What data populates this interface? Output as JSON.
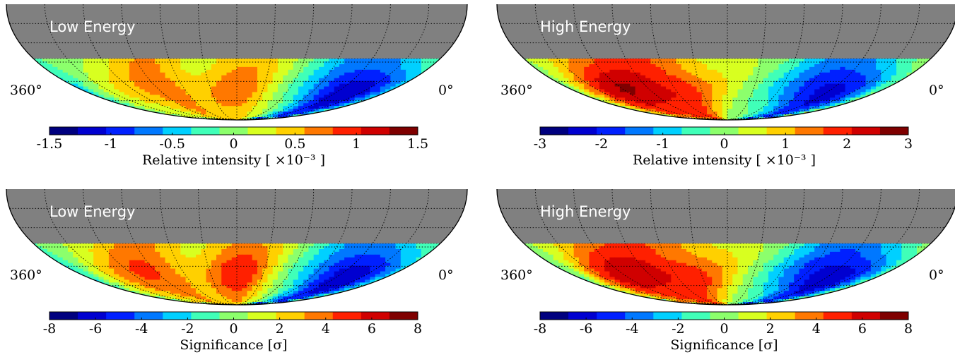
{
  "chart_data": [
    {
      "type": "heatmap",
      "title": "Low Energy",
      "left_label": "360°",
      "right_label": "0°",
      "colorbar_label": "Relative intensity [ ×10⁻³ ]",
      "colorbar_range": [
        -1.5,
        1.5
      ],
      "colorbar_ticks": [
        "-1.5",
        "-1",
        "-0.5",
        "0",
        "0.5",
        "1",
        "1.5"
      ],
      "colorbar_tick_values": [
        -1.5,
        -1,
        -0.5,
        0,
        0.5,
        1,
        1.5
      ],
      "colorbar_colors": [
        "#00007f",
        "#0000d0",
        "#0020ff",
        "#0078ff",
        "#00d0ff",
        "#40ffb8",
        "#8cff6c",
        "#d8ff20",
        "#ffd000",
        "#ff7800",
        "#ff2000",
        "#d00000",
        "#7f0000"
      ],
      "features": [
        {
          "ra_deg": 50,
          "value": -1.4,
          "spread_deg": 40
        },
        {
          "ra_deg": 175,
          "value": 0.6,
          "spread_deg": 30
        },
        {
          "ra_deg": 260,
          "value": 0.6,
          "spread_deg": 25
        },
        {
          "ra_deg": 330,
          "value": 0.2,
          "spread_deg": 40
        }
      ]
    },
    {
      "type": "heatmap",
      "title": "High Energy",
      "left_label": "360°",
      "right_label": "0°",
      "colorbar_label": "Relative intensity [ ×10⁻³ ]",
      "colorbar_range": [
        -3,
        3
      ],
      "colorbar_ticks": [
        "-3",
        "-2",
        "-1",
        "0",
        "1",
        "2",
        "3"
      ],
      "colorbar_tick_values": [
        -3,
        -2,
        -1,
        0,
        1,
        2,
        3
      ],
      "colorbar_colors": [
        "#00007f",
        "#0000d0",
        "#0020ff",
        "#0078ff",
        "#00d0ff",
        "#40ffb8",
        "#8cff6c",
        "#d8ff20",
        "#ffd000",
        "#ff7800",
        "#ff2000",
        "#d00000",
        "#7f0000"
      ],
      "features": [
        {
          "ra_deg": 60,
          "value": -2.7,
          "spread_deg": 45
        },
        {
          "ra_deg": 300,
          "value": 2.2,
          "spread_deg": 45
        },
        {
          "ra_deg": 230,
          "value": 1.1,
          "spread_deg": 30
        }
      ]
    },
    {
      "type": "heatmap",
      "title": "Low Energy",
      "left_label": "360°",
      "right_label": "0°",
      "colorbar_label": "Significance [σ]",
      "colorbar_range": [
        -8,
        8
      ],
      "colorbar_ticks": [
        "-8",
        "-6",
        "-4",
        "-2",
        "0",
        "2",
        "4",
        "6",
        "8"
      ],
      "colorbar_tick_values": [
        -8,
        -6,
        -4,
        -2,
        0,
        2,
        4,
        6,
        8
      ],
      "colorbar_colors": [
        "#00007f",
        "#0000d0",
        "#0020ff",
        "#0078ff",
        "#00d0ff",
        "#40ffb8",
        "#8cff6c",
        "#d8ff20",
        "#ffd000",
        "#ff7800",
        "#ff2000",
        "#d00000",
        "#7f0000"
      ],
      "features": [
        {
          "ra_deg": 50,
          "value": -7.5,
          "spread_deg": 40
        },
        {
          "ra_deg": 175,
          "value": 4.5,
          "spread_deg": 28
        },
        {
          "ra_deg": 270,
          "value": 3.5,
          "spread_deg": 30
        },
        {
          "ra_deg": 330,
          "value": 1.5,
          "spread_deg": 40
        }
      ]
    },
    {
      "type": "heatmap",
      "title": "High Energy",
      "left_label": "360°",
      "right_label": "0°",
      "colorbar_label": "Significance [σ]",
      "colorbar_range": [
        -8,
        8
      ],
      "colorbar_ticks": [
        "-8",
        "-6",
        "-4",
        "-2",
        "0",
        "2",
        "4",
        "6",
        "8"
      ],
      "colorbar_tick_values": [
        -8,
        -6,
        -4,
        -2,
        0,
        2,
        4,
        6,
        8
      ],
      "colorbar_colors": [
        "#00007f",
        "#0000d0",
        "#0020ff",
        "#0078ff",
        "#00d0ff",
        "#40ffb8",
        "#8cff6c",
        "#d8ff20",
        "#ffd000",
        "#ff7800",
        "#ff2000",
        "#d00000",
        "#7f0000"
      ],
      "features": [
        {
          "ra_deg": 60,
          "value": -7.5,
          "spread_deg": 45
        },
        {
          "ra_deg": 295,
          "value": 5.5,
          "spread_deg": 45
        },
        {
          "ra_deg": 220,
          "value": 3.0,
          "spread_deg": 35
        }
      ]
    }
  ],
  "colors": {
    "unobserved_sky": "#808080",
    "outline": "#000000",
    "graticule": "#000000"
  }
}
